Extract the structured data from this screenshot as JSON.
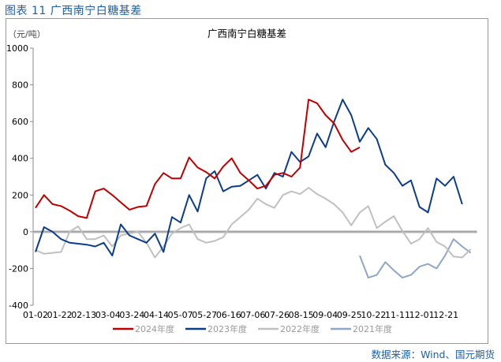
{
  "figure_title": "图表 11 广西南宁白糖基差",
  "source": "数据来源：Wind、国元期货",
  "chart_data": {
    "type": "line",
    "title": "广西南宁白糖基差",
    "ylabel": "（元/吨）",
    "ylim": [
      -400,
      1000
    ],
    "yticks": [
      -400,
      -200,
      0,
      200,
      400,
      600,
      800,
      1000
    ],
    "xtick_labels": [
      "01-02",
      "01-22",
      "02-13",
      "03-04",
      "03-24",
      "04-14",
      "05-07",
      "05-27",
      "06-16",
      "07-06",
      "07-26",
      "08-15",
      "09-04",
      "09-25",
      "10-22",
      "11-11",
      "12-01",
      "12-21"
    ],
    "grid": false,
    "legend_position": "bottom",
    "x": [
      "01-02",
      "01-09",
      "01-16",
      "01-23",
      "01-30",
      "02-06",
      "02-13",
      "02-20",
      "02-27",
      "03-06",
      "03-13",
      "03-20",
      "03-27",
      "04-03",
      "04-10",
      "04-17",
      "04-24",
      "05-01",
      "05-08",
      "05-15",
      "05-22",
      "05-29",
      "06-05",
      "06-12",
      "06-19",
      "06-26",
      "07-03",
      "07-10",
      "07-17",
      "07-24",
      "07-31",
      "08-07",
      "08-14",
      "08-21",
      "08-28",
      "09-04",
      "09-11",
      "09-18",
      "09-25",
      "10-02",
      "10-09",
      "10-16",
      "10-23",
      "10-30",
      "11-06",
      "11-13",
      "11-20",
      "11-27",
      "12-04",
      "12-11",
      "12-18",
      "12-25"
    ],
    "series": [
      {
        "name": "2024年度",
        "color": "#c00000",
        "values": [
          130,
          200,
          150,
          140,
          115,
          85,
          75,
          220,
          235,
          200,
          160,
          120,
          135,
          140,
          260,
          320,
          290,
          290,
          405,
          350,
          325,
          290,
          355,
          400,
          320,
          280,
          235,
          250,
          310,
          320,
          300,
          350,
          720,
          700,
          635,
          590,
          500,
          435,
          460,
          null,
          null,
          null,
          null,
          null,
          null,
          null,
          null,
          null,
          null,
          null,
          null,
          null
        ]
      },
      {
        "name": "2023年度",
        "color": "#0b3d8c",
        "values": [
          -110,
          25,
          0,
          -40,
          -60,
          -65,
          -70,
          -80,
          -60,
          -130,
          40,
          -20,
          -40,
          -60,
          -10,
          -110,
          80,
          50,
          200,
          110,
          290,
          330,
          220,
          245,
          250,
          280,
          310,
          235,
          320,
          300,
          435,
          380,
          410,
          535,
          460,
          600,
          720,
          635,
          490,
          565,
          505,
          365,
          320,
          250,
          280,
          135,
          105,
          290,
          250,
          300,
          150,
          null
        ]
      },
      {
        "name": "2022年度",
        "color": "#c0c0c0",
        "values": [
          -100,
          -120,
          -115,
          -110,
          0,
          30,
          -40,
          -40,
          -20,
          -80,
          -20,
          -10,
          0,
          -60,
          -140,
          -80,
          -10,
          20,
          40,
          -40,
          -60,
          -50,
          -30,
          40,
          80,
          120,
          180,
          150,
          130,
          200,
          220,
          205,
          240,
          205,
          180,
          150,
          105,
          35,
          105,
          140,
          20,
          55,
          85,
          5,
          -65,
          -40,
          20,
          -55,
          -80,
          -135,
          -140,
          -95
        ]
      },
      {
        "name": "2021年度",
        "color": "#8ea6c9",
        "values": [
          null,
          null,
          null,
          null,
          null,
          null,
          null,
          null,
          null,
          null,
          null,
          null,
          null,
          null,
          null,
          null,
          null,
          null,
          null,
          null,
          null,
          null,
          null,
          null,
          null,
          null,
          null,
          null,
          null,
          null,
          null,
          null,
          null,
          null,
          null,
          null,
          null,
          null,
          -130,
          -250,
          -235,
          -165,
          -210,
          -250,
          -235,
          -190,
          -175,
          -200,
          -130,
          -40,
          -80,
          -115
        ]
      }
    ]
  }
}
